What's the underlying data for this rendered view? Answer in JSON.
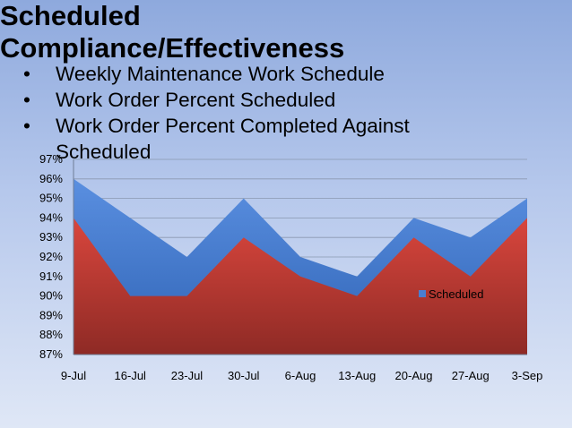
{
  "slide": {
    "title_line1": "Scheduled",
    "title_line2": "Compliance/Effectiveness",
    "bullets": [
      {
        "line1": "Weekly Maintenance Work Schedule",
        "line2": ""
      },
      {
        "line1": "Work Order Percent Scheduled",
        "line2": ""
      },
      {
        "line1": "Work Order Percent Completed Against",
        "line2": "Scheduled"
      }
    ]
  },
  "chart_data": {
    "type": "area",
    "categories": [
      "9-Jul",
      "16-Jul",
      "23-Jul",
      "30-Jul",
      "6-Aug",
      "13-Aug",
      "20-Aug",
      "27-Aug",
      "3-Sep"
    ],
    "series": [
      {
        "name": "Scheduled",
        "values": [
          96,
          94,
          92,
          95,
          92,
          91,
          94,
          93,
          95
        ],
        "color": "#4a7ed0"
      },
      {
        "values": [
          94,
          90,
          90,
          93,
          91,
          90,
          93,
          91,
          94
        ],
        "color": "#c8403a"
      }
    ],
    "ylim": [
      87,
      97
    ],
    "yticks": [
      "87%",
      "88%",
      "89%",
      "90%",
      "91%",
      "92%",
      "93%",
      "94%",
      "95%",
      "96%",
      "97%"
    ],
    "grid": true,
    "legend_position": "right"
  }
}
